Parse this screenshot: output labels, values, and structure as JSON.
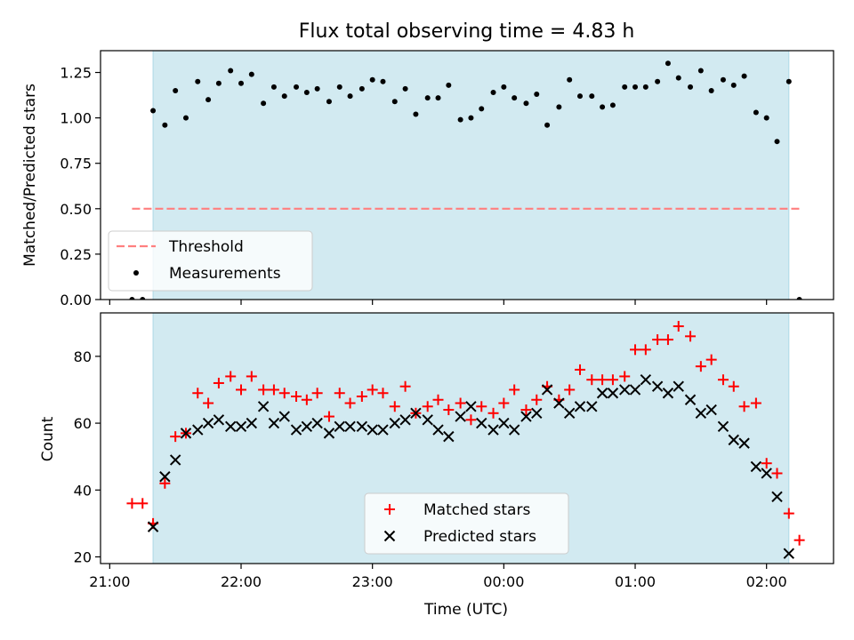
{
  "chart_data": [
    {
      "type": "scatter",
      "title": "Flux total observing time = 4.83 h",
      "ylabel": "Matched/Predicted stars",
      "ylim": [
        0,
        1.37
      ],
      "yticks": [
        0.0,
        0.25,
        0.5,
        0.75,
        1.0,
        1.25
      ],
      "ytick_labels": [
        "0.00",
        "0.25",
        "0.50",
        "0.75",
        "1.00",
        "1.25"
      ],
      "xlim_hours": [
        20.93,
        26.51
      ],
      "shaded_span_hours": [
        21.33,
        26.17
      ],
      "shade_color": "#add8e6",
      "threshold": {
        "name": "Threshold",
        "y": 0.5,
        "x_range_hours": [
          21.17,
          26.25
        ],
        "color": "#ff7f7f"
      },
      "legend": {
        "placement": "lower left",
        "entries": [
          "Threshold",
          "Measurements"
        ]
      },
      "series": [
        {
          "name": "Measurements",
          "color": "#000000",
          "x_hours": [
            21.17,
            21.25,
            21.33,
            21.42,
            21.5,
            21.58,
            21.67,
            21.75,
            21.83,
            21.92,
            22.0,
            22.08,
            22.17,
            22.25,
            22.33,
            22.42,
            22.5,
            22.58,
            22.67,
            22.75,
            22.83,
            22.92,
            23.0,
            23.08,
            23.17,
            23.25,
            23.33,
            23.42,
            23.5,
            23.58,
            23.67,
            23.75,
            23.83,
            23.92,
            24.0,
            24.08,
            24.17,
            24.25,
            24.33,
            24.42,
            24.5,
            24.58,
            24.67,
            24.75,
            24.83,
            24.92,
            25.0,
            25.08,
            25.17,
            25.25,
            25.33,
            25.42,
            25.5,
            25.58,
            25.67,
            25.75,
            25.83,
            25.92,
            26.0,
            26.08,
            26.17,
            26.25
          ],
          "values": [
            0.0,
            0.0,
            1.04,
            0.96,
            1.15,
            1.0,
            1.2,
            1.1,
            1.19,
            1.26,
            1.19,
            1.24,
            1.08,
            1.17,
            1.12,
            1.17,
            1.14,
            1.16,
            1.09,
            1.17,
            1.12,
            1.16,
            1.21,
            1.2,
            1.09,
            1.16,
            1.02,
            1.11,
            1.11,
            1.18,
            0.99,
            1.0,
            1.05,
            1.14,
            1.17,
            1.11,
            1.08,
            1.13,
            0.96,
            1.06,
            1.21,
            1.12,
            1.12,
            1.06,
            1.07,
            1.17,
            1.17,
            1.17,
            1.2,
            1.3,
            1.22,
            1.17,
            1.26,
            1.15,
            1.21,
            1.18,
            1.23,
            1.03,
            1.0,
            0.87,
            1.2,
            0.0
          ]
        }
      ]
    },
    {
      "type": "scatter",
      "xlabel": "Time (UTC)",
      "ylabel": "Count",
      "ylim": [
        18,
        93
      ],
      "yticks": [
        20,
        40,
        60,
        80
      ],
      "ytick_labels": [
        "20",
        "40",
        "60",
        "80"
      ],
      "xlim_hours": [
        20.93,
        26.51
      ],
      "xticks_hours": [
        21,
        22,
        23,
        24,
        25,
        26
      ],
      "xtick_labels": [
        "21:00",
        "22:00",
        "23:00",
        "00:00",
        "01:00",
        "02:00"
      ],
      "shaded_span_hours": [
        21.33,
        26.17
      ],
      "shade_color": "#add8e6",
      "legend": {
        "placement": "lower center",
        "entries": [
          "Matched stars",
          "Predicted stars"
        ]
      },
      "series": [
        {
          "name": "Matched stars",
          "marker": "+",
          "color": "#ff0000",
          "x_hours": [
            21.17,
            21.25,
            21.33,
            21.42,
            21.5,
            21.58,
            21.67,
            21.75,
            21.83,
            21.92,
            22.0,
            22.08,
            22.17,
            22.25,
            22.33,
            22.42,
            22.5,
            22.58,
            22.67,
            22.75,
            22.83,
            22.92,
            23.0,
            23.08,
            23.17,
            23.25,
            23.33,
            23.42,
            23.5,
            23.58,
            23.67,
            23.75,
            23.83,
            23.92,
            24.0,
            24.08,
            24.17,
            24.25,
            24.33,
            24.42,
            24.5,
            24.58,
            24.67,
            24.75,
            24.83,
            24.92,
            25.0,
            25.08,
            25.17,
            25.25,
            25.33,
            25.42,
            25.5,
            25.58,
            25.67,
            25.75,
            25.83,
            25.92,
            26.0,
            26.08,
            26.17,
            26.25
          ],
          "values": [
            36,
            36,
            30,
            42,
            56,
            57,
            69,
            66,
            72,
            74,
            70,
            74,
            70,
            70,
            69,
            68,
            67,
            69,
            62,
            69,
            66,
            68,
            70,
            69,
            65,
            71,
            63,
            65,
            67,
            64,
            66,
            61,
            65,
            63,
            66,
            70,
            64,
            67,
            71,
            67,
            70,
            76,
            73,
            73,
            73,
            74,
            82,
            82,
            85,
            85,
            89,
            86,
            77,
            79,
            73,
            71,
            65,
            66,
            48,
            45,
            33,
            25
          ]
        },
        {
          "name": "Predicted stars",
          "marker": "x",
          "color": "#000000",
          "x_hours": [
            21.33,
            21.42,
            21.5,
            21.58,
            21.67,
            21.75,
            21.83,
            21.92,
            22.0,
            22.08,
            22.17,
            22.25,
            22.33,
            22.42,
            22.5,
            22.58,
            22.67,
            22.75,
            22.83,
            22.92,
            23.0,
            23.08,
            23.17,
            23.25,
            23.33,
            23.42,
            23.5,
            23.58,
            23.67,
            23.75,
            23.83,
            23.92,
            24.0,
            24.08,
            24.17,
            24.25,
            24.33,
            24.42,
            24.5,
            24.58,
            24.67,
            24.75,
            24.83,
            24.92,
            25.0,
            25.08,
            25.17,
            25.25,
            25.33,
            25.42,
            25.5,
            25.58,
            25.67,
            25.75,
            25.83,
            25.92,
            26.0,
            26.08,
            26.17
          ],
          "values": [
            29,
            44,
            49,
            57,
            58,
            60,
            61,
            59,
            59,
            60,
            65,
            60,
            62,
            58,
            59,
            60,
            57,
            59,
            59,
            59,
            58,
            58,
            60,
            61,
            63,
            61,
            58,
            56,
            62,
            65,
            60,
            58,
            60,
            58,
            62,
            63,
            70,
            66,
            63,
            65,
            65,
            69,
            69,
            70,
            70,
            73,
            71,
            69,
            71,
            67,
            63,
            64,
            59,
            55,
            54,
            47,
            45,
            38,
            21
          ]
        }
      ]
    }
  ]
}
